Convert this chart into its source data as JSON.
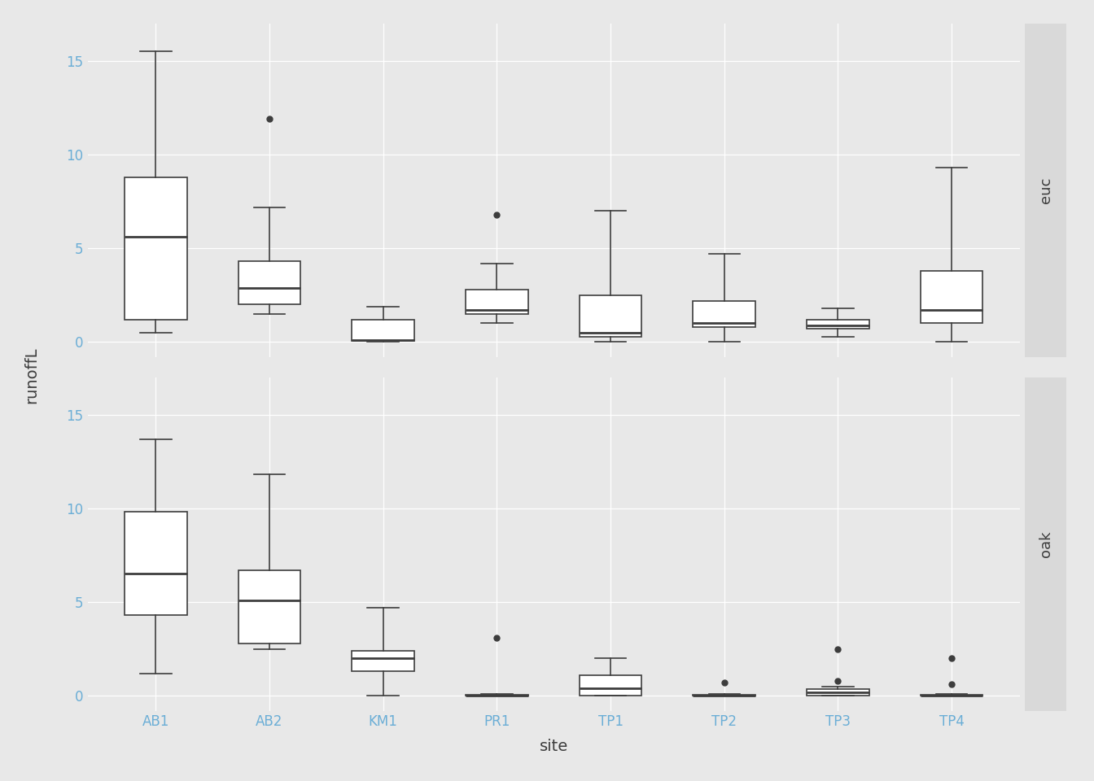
{
  "title": "",
  "ylabel": "runoffL",
  "xlabel": "site",
  "sites": [
    "AB1",
    "AB2",
    "KM1",
    "PR1",
    "TP1",
    "TP2",
    "TP3",
    "TP4"
  ],
  "panels": [
    "euc",
    "oak"
  ],
  "euc": {
    "AB1": {
      "whislo": 0.5,
      "q1": 1.2,
      "median": 5.6,
      "q3": 8.8,
      "whishi": 15.5,
      "fliers": []
    },
    "AB2": {
      "whislo": 1.5,
      "q1": 2.0,
      "median": 2.9,
      "q3": 4.3,
      "whishi": 7.2,
      "fliers": [
        11.9
      ]
    },
    "KM1": {
      "whislo": 0.0,
      "q1": 0.05,
      "median": 0.1,
      "q3": 1.2,
      "whishi": 1.9,
      "fliers": []
    },
    "PR1": {
      "whislo": 1.0,
      "q1": 1.5,
      "median": 1.7,
      "q3": 2.8,
      "whishi": 4.2,
      "fliers": [
        6.8
      ]
    },
    "TP1": {
      "whislo": 0.0,
      "q1": 0.3,
      "median": 0.5,
      "q3": 2.5,
      "whishi": 7.0,
      "fliers": []
    },
    "TP2": {
      "whislo": 0.0,
      "q1": 0.8,
      "median": 1.0,
      "q3": 2.2,
      "whishi": 4.7,
      "fliers": []
    },
    "TP3": {
      "whislo": 0.3,
      "q1": 0.7,
      "median": 0.9,
      "q3": 1.2,
      "whishi": 1.8,
      "fliers": []
    },
    "TP4": {
      "whislo": 0.0,
      "q1": 1.0,
      "median": 1.7,
      "q3": 3.8,
      "whishi": 9.3,
      "fliers": []
    }
  },
  "oak": {
    "AB1": {
      "whislo": 1.2,
      "q1": 4.3,
      "median": 6.5,
      "q3": 9.8,
      "whishi": 13.7,
      "fliers": []
    },
    "AB2": {
      "whislo": 2.5,
      "q1": 2.8,
      "median": 5.1,
      "q3": 6.7,
      "whishi": 11.8,
      "fliers": []
    },
    "KM1": {
      "whislo": 0.0,
      "q1": 1.3,
      "median": 2.0,
      "q3": 2.4,
      "whishi": 4.7,
      "fliers": []
    },
    "PR1": {
      "whislo": 0.0,
      "q1": 0.0,
      "median": 0.0,
      "q3": 0.05,
      "whishi": 0.1,
      "fliers": [
        3.1
      ]
    },
    "TP1": {
      "whislo": 0.0,
      "q1": 0.0,
      "median": 0.4,
      "q3": 1.1,
      "whishi": 2.0,
      "fliers": []
    },
    "TP2": {
      "whislo": 0.0,
      "q1": 0.0,
      "median": 0.0,
      "q3": 0.05,
      "whishi": 0.1,
      "fliers": [
        0.7
      ]
    },
    "TP3": {
      "whislo": 0.0,
      "q1": 0.0,
      "median": 0.2,
      "q3": 0.35,
      "whishi": 0.5,
      "fliers": [
        2.5,
        0.8
      ]
    },
    "TP4": {
      "whislo": 0.0,
      "q1": 0.0,
      "median": 0.0,
      "q3": 0.05,
      "whishi": 0.1,
      "fliers": [
        2.0,
        0.6
      ]
    }
  },
  "background_color": "#e8e8e8",
  "panel_gap_color": "#ffffff",
  "strip_bg_color": "#d9d9d9",
  "box_facecolor": "#ffffff",
  "box_edgecolor": "#3d3d3d",
  "median_color": "#3d3d3d",
  "flier_color": "#3d3d3d",
  "text_color": "#3d3d3d",
  "axis_label_color": "#6baed6",
  "grid_color": "#ffffff",
  "ylim": [
    -0.8,
    17
  ],
  "yticks": [
    0,
    5,
    10,
    15
  ],
  "label_fontsize": 14,
  "tick_fontsize": 12,
  "strip_fontsize": 13
}
